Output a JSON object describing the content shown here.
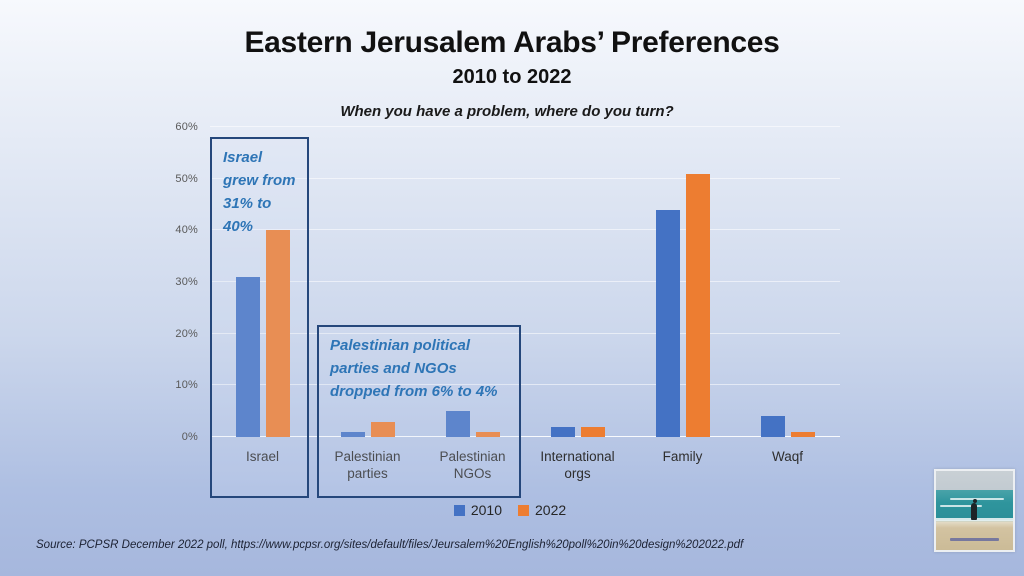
{
  "slide": {
    "title": "Eastern Jerusalem Arabs’ Preferences",
    "subtitle": "2010 to 2022",
    "source": "Source: PCPSR December 2022  poll, https://www.pcpsr.org/sites/default/files/Jeursalem%20English%20poll%20in%20design%202022.pdf"
  },
  "chart_data": {
    "type": "bar",
    "title": "When you have a problem, where do you turn?",
    "categories": [
      "Israel",
      "Palestinian parties",
      "Palestinian NGOs",
      "International orgs",
      "Family",
      "Waqf"
    ],
    "series": [
      {
        "name": "2010",
        "color": "#4472c4",
        "values": [
          31,
          1,
          5,
          2,
          44,
          4
        ]
      },
      {
        "name": "2022",
        "color": "#ed7d31",
        "values": [
          40,
          3,
          1,
          2,
          51,
          1
        ]
      }
    ],
    "ylabel": "",
    "xlabel": "",
    "ylim": [
      0,
      60
    ],
    "ytick_step": 10,
    "ytick_labels": [
      "0%",
      "10%",
      "20%",
      "30%",
      "40%",
      "50%",
      "60%"
    ],
    "grid": true,
    "legend_position": "bottom"
  },
  "annotations": [
    {
      "text": "Israel grew from 31% to 40%"
    },
    {
      "text": "Palestinian political parties and NGOs dropped from 6% to 4%"
    }
  ],
  "colors": {
    "series_2010": "#4472c4",
    "series_2022": "#ed7d31",
    "annotation_text": "#2e75b6",
    "annotation_border": "#25477b"
  },
  "footer_image": {
    "name": "beach-photo",
    "description": "person standing on a sandy beach facing a teal sea"
  }
}
